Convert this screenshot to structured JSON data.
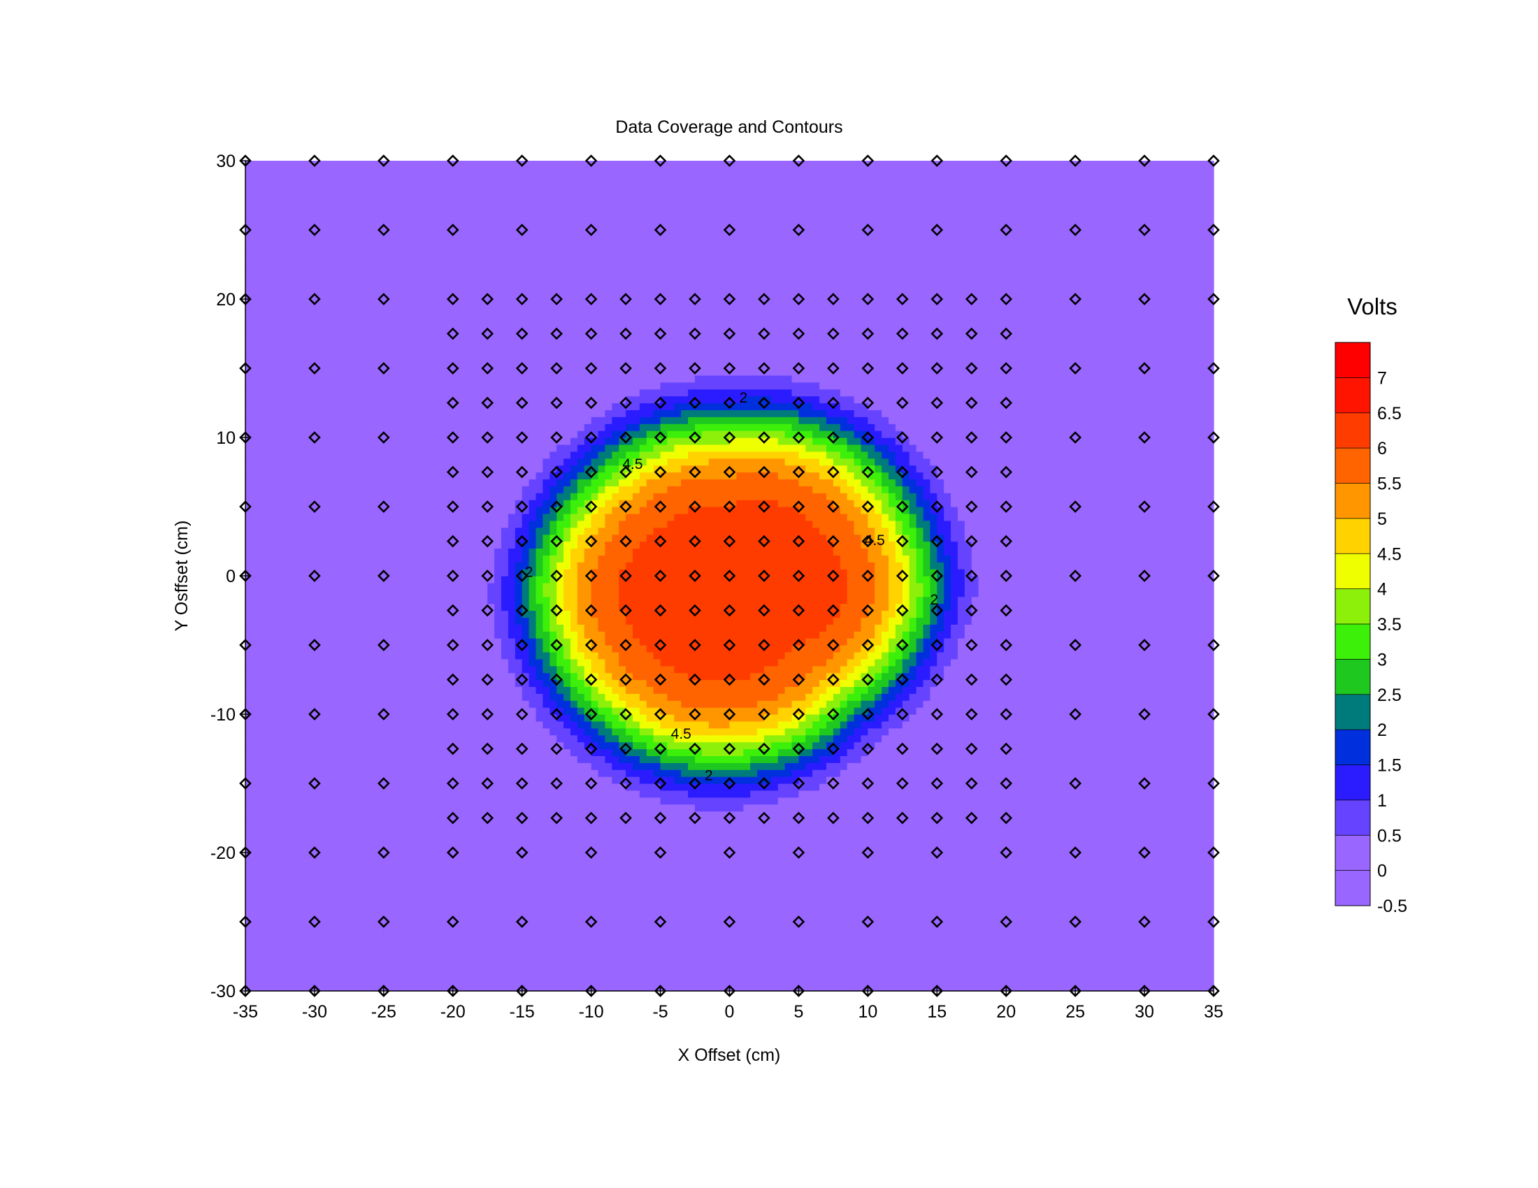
{
  "chart_data": {
    "type": "heatmap",
    "title": "Data Coverage and Contours",
    "xlabel": "X Offset (cm)",
    "ylabel": "Y Osffset (cm)",
    "xlim": [
      -35,
      35
    ],
    "ylim": [
      -30,
      30
    ],
    "x_ticks": [
      "-35",
      "-30",
      "-25",
      "-20",
      "-15",
      "-10",
      "-5",
      "0",
      "5",
      "10",
      "15",
      "20",
      "25",
      "30",
      "35"
    ],
    "y_ticks": [
      "30",
      "20",
      "10",
      "0",
      "-10",
      "-20",
      "-30"
    ],
    "y_tick_values": [
      30,
      20,
      10,
      0,
      -10,
      -20,
      -30
    ],
    "x_tick_values": [
      -35,
      -30,
      -25,
      -20,
      -15,
      -10,
      -5,
      0,
      5,
      10,
      15,
      20,
      25,
      30,
      35
    ],
    "field": {
      "description_unit": "Volts",
      "center": [
        0,
        -1
      ],
      "core_value": 6.3,
      "background_value": -0.5,
      "iso_radius_by_angle_deg": {
        "0": 14.5,
        "45": 13.5,
        "90": 12.0,
        "135": 12.5,
        "180": 14.0,
        "225": 13.0,
        "270": 12.5,
        "315": 12.0
      }
    },
    "contour_levels": [
      -0.5,
      0,
      0.5,
      1,
      1.5,
      2,
      2.5,
      3,
      3.5,
      4,
      4.5,
      5,
      5.5,
      6,
      6.5,
      7,
      7.5
    ],
    "contour_colors": [
      "#9966ff",
      "#9966ff",
      "#6644ff",
      "#2a1cff",
      "#0030dd",
      "#007b7b",
      "#1ec81e",
      "#3cf00a",
      "#8cf00a",
      "#f0ff00",
      "#ffd200",
      "#ff9600",
      "#ff6400",
      "#ff3c00",
      "#ff1400",
      "#ff0000"
    ],
    "contour_labels": [
      {
        "text": "2",
        "x": 1.0,
        "y": 12.8
      },
      {
        "text": "2",
        "x": -1.5,
        "y": -14.5
      },
      {
        "text": "2",
        "x": 14.8,
        "y": -1.8
      },
      {
        "text": "2",
        "x": -14.5,
        "y": 0.2
      },
      {
        "text": "4.5",
        "x": -7.0,
        "y": 8.0
      },
      {
        "text": "4.5",
        "x": 10.5,
        "y": 2.5
      },
      {
        "text": "4.5",
        "x": -3.5,
        "y": -11.5
      }
    ],
    "sample_points": {
      "coarse_step": 5,
      "fine_step": 2.5,
      "fine_region": {
        "x": [
          -20,
          20
        ],
        "y": [
          -17.5,
          20
        ]
      },
      "x_range": [
        -35,
        35
      ],
      "y_range": [
        -30,
        30
      ]
    },
    "legend": {
      "title": "Volts",
      "labels": [
        "7",
        "6.5",
        "6",
        "5.5",
        "5",
        "4.5",
        "4",
        "3.5",
        "3",
        "2.5",
        "2",
        "1.5",
        "1",
        "0.5",
        "0",
        "-0.5"
      ],
      "colors_top_to_bottom": [
        "#ff0000",
        "#ff1400",
        "#ff3c00",
        "#ff6400",
        "#ff9600",
        "#ffd200",
        "#f0ff00",
        "#8cf00a",
        "#3cf00a",
        "#1ec81e",
        "#007b7b",
        "#0030dd",
        "#2a1cff",
        "#6644ff",
        "#9966ff",
        "#9966ff"
      ]
    }
  }
}
